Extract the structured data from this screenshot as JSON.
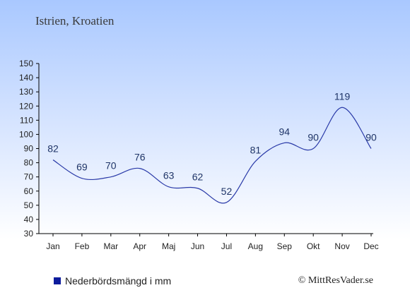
{
  "header": {
    "title": "Istrien, Kroatien"
  },
  "legend": {
    "label": "Nederbördsmängd i mm",
    "color": "#0d1c9c"
  },
  "footer": {
    "credit": "© MittResVader.se"
  },
  "chart_data": {
    "type": "line",
    "categories": [
      "Jan",
      "Feb",
      "Mar",
      "Apr",
      "Maj",
      "Jun",
      "Jul",
      "Aug",
      "Sep",
      "Okt",
      "Nov",
      "Dec"
    ],
    "series": [
      {
        "name": "Nederbördsmängd i mm",
        "values": [
          82,
          69,
          70,
          76,
          63,
          62,
          52,
          81,
          94,
          90,
          119,
          90
        ],
        "color": "#2a3aa8"
      }
    ],
    "yticks": [
      30,
      40,
      50,
      60,
      70,
      80,
      90,
      100,
      110,
      120,
      130,
      140,
      150
    ],
    "ylim": [
      30,
      150
    ],
    "title": "Istrien, Kroatien",
    "xlabel": "",
    "ylabel": "",
    "grid": false,
    "legend_position": "bottom-left"
  }
}
